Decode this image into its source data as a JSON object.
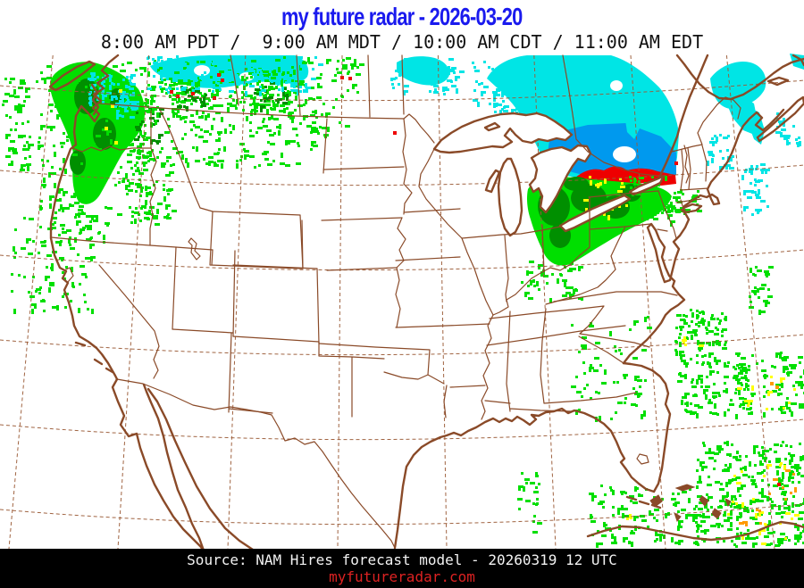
{
  "header": {
    "title": "my future radar - 2026-03-20",
    "times": "8:00 AM PDT /  9:00 AM MDT / 10:00 AM CDT / 11:00 AM EDT"
  },
  "footer": {
    "source": "Source: NAM Hires forecast model - 20260319 12 UTC",
    "site": "myfutureradar.com"
  },
  "map": {
    "description": "CONUS forecast radar composite, state and province outlines with lat/lon graticule",
    "colors": {
      "title_blue": "#1a1aee",
      "outline_brown": "#8a4a28",
      "graticule_brown": "#9b5c38",
      "light_rain_green": "#00df00",
      "moderate_rain_green": "#008f00",
      "heavy_yellow": "#ffff00",
      "very_heavy_orange": "#ff9900",
      "extreme_red": "#ee0000",
      "light_snow_cyan": "#00e5e5",
      "moderate_snow_blue": "#0099ee",
      "site_red": "#dd2222",
      "footer_bg": "#000000"
    }
  }
}
